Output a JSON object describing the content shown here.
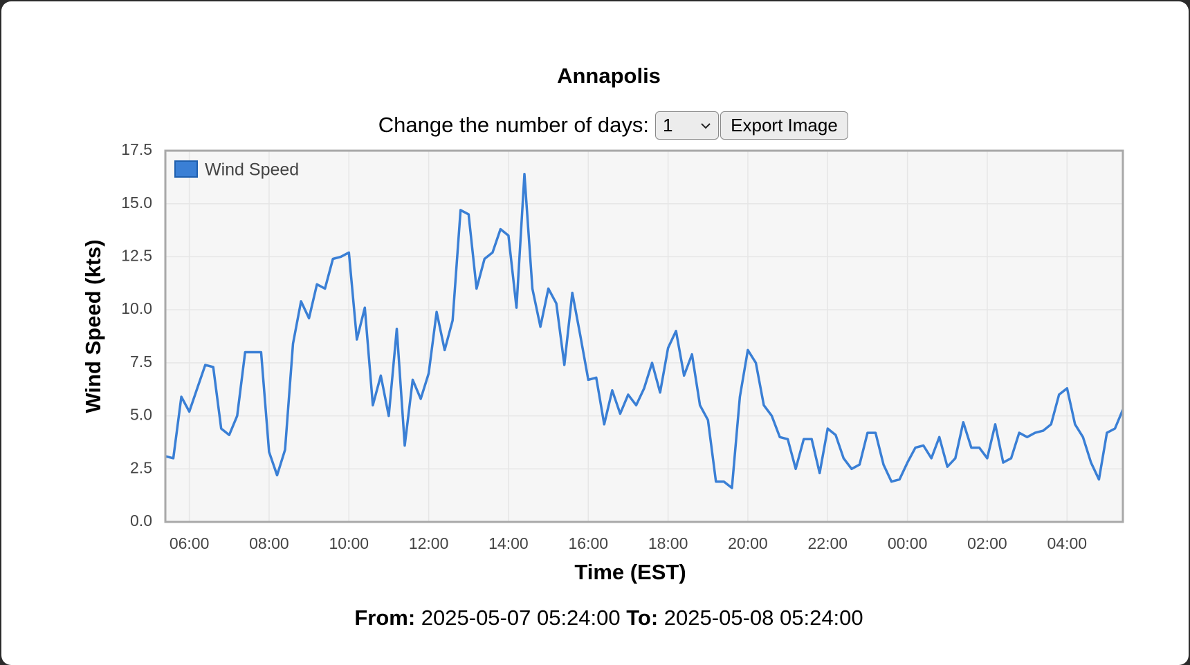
{
  "header": {
    "title": "Annapolis",
    "days_label": "Change the number of days:",
    "days_value": "1",
    "export_button": "Export Image"
  },
  "chart_data": {
    "type": "line",
    "ylabel": "Wind Speed (kts)",
    "xlabel": "Time (EST)",
    "legend": "top-left",
    "grid": true,
    "xlim": [
      "2025-05-07 05:24:00",
      "2025-05-08 05:24:00"
    ],
    "ylim": [
      0,
      17.5
    ],
    "yticks": [
      {
        "value": 0,
        "label": "0.0"
      },
      2.5,
      {
        "value": 5,
        "label": "5.0"
      },
      7.5,
      {
        "value": 10,
        "label": "10.0"
      },
      12.5,
      {
        "value": 15,
        "label": "15.0"
      },
      17.5
    ],
    "xticks": [
      {
        "value": "2025-05-07 06:00",
        "label": "06:00"
      },
      {
        "value": "2025-05-07 08:00",
        "label": "08:00"
      },
      {
        "value": "2025-05-07 10:00",
        "label": "10:00"
      },
      {
        "value": "2025-05-07 12:00",
        "label": "12:00"
      },
      {
        "value": "2025-05-07 14:00",
        "label": "14:00"
      },
      {
        "value": "2025-05-07 16:00",
        "label": "16:00"
      },
      {
        "value": "2025-05-07 18:00",
        "label": "18:00"
      },
      {
        "value": "2025-05-07 20:00",
        "label": "20:00"
      },
      {
        "value": "2025-05-07 22:00",
        "label": "22:00"
      },
      {
        "value": "2025-05-08 00:00",
        "label": "00:00"
      },
      {
        "value": "2025-05-08 02:00",
        "label": "02:00"
      },
      {
        "value": "2025-05-08 04:00",
        "label": "04:00"
      }
    ],
    "x": [
      "2025-05-07 05:24",
      "2025-05-07 05:36",
      "2025-05-07 05:48",
      "2025-05-07 06:00",
      "2025-05-07 06:12",
      "2025-05-07 06:24",
      "2025-05-07 06:36",
      "2025-05-07 06:48",
      "2025-05-07 07:00",
      "2025-05-07 07:12",
      "2025-05-07 07:24",
      "2025-05-07 07:36",
      "2025-05-07 07:48",
      "2025-05-07 08:00",
      "2025-05-07 08:12",
      "2025-05-07 08:24",
      "2025-05-07 08:36",
      "2025-05-07 08:48",
      "2025-05-07 09:00",
      "2025-05-07 09:12",
      "2025-05-07 09:24",
      "2025-05-07 09:36",
      "2025-05-07 09:48",
      "2025-05-07 10:00",
      "2025-05-07 10:12",
      "2025-05-07 10:24",
      "2025-05-07 10:36",
      "2025-05-07 10:48",
      "2025-05-07 11:00",
      "2025-05-07 11:12",
      "2025-05-07 11:24",
      "2025-05-07 11:36",
      "2025-05-07 11:48",
      "2025-05-07 12:00",
      "2025-05-07 12:12",
      "2025-05-07 12:24",
      "2025-05-07 12:36",
      "2025-05-07 12:48",
      "2025-05-07 13:00",
      "2025-05-07 13:12",
      "2025-05-07 13:24",
      "2025-05-07 13:36",
      "2025-05-07 13:48",
      "2025-05-07 14:00",
      "2025-05-07 14:12",
      "2025-05-07 14:24",
      "2025-05-07 14:36",
      "2025-05-07 14:48",
      "2025-05-07 15:00",
      "2025-05-07 15:12",
      "2025-05-07 15:24",
      "2025-05-07 15:36",
      "2025-05-07 15:48",
      "2025-05-07 16:00",
      "2025-05-07 16:12",
      "2025-05-07 16:24",
      "2025-05-07 16:36",
      "2025-05-07 16:48",
      "2025-05-07 17:00",
      "2025-05-07 17:12",
      "2025-05-07 17:24",
      "2025-05-07 17:36",
      "2025-05-07 17:48",
      "2025-05-07 18:00",
      "2025-05-07 18:12",
      "2025-05-07 18:24",
      "2025-05-07 18:36",
      "2025-05-07 18:48",
      "2025-05-07 19:00",
      "2025-05-07 19:12",
      "2025-05-07 19:24",
      "2025-05-07 19:36",
      "2025-05-07 19:48",
      "2025-05-07 20:00",
      "2025-05-07 20:12",
      "2025-05-07 20:24",
      "2025-05-07 20:36",
      "2025-05-07 20:48",
      "2025-05-07 21:00",
      "2025-05-07 21:12",
      "2025-05-07 21:24",
      "2025-05-07 21:36",
      "2025-05-07 21:48",
      "2025-05-07 22:00",
      "2025-05-07 22:12",
      "2025-05-07 22:24",
      "2025-05-07 22:36",
      "2025-05-07 22:48",
      "2025-05-07 23:00",
      "2025-05-07 23:12",
      "2025-05-07 23:24",
      "2025-05-07 23:36",
      "2025-05-07 23:48",
      "2025-05-08 00:00",
      "2025-05-08 00:12",
      "2025-05-08 00:24",
      "2025-05-08 00:36",
      "2025-05-08 00:48",
      "2025-05-08 01:00",
      "2025-05-08 01:12",
      "2025-05-08 01:24",
      "2025-05-08 01:36",
      "2025-05-08 01:48",
      "2025-05-08 02:00",
      "2025-05-08 02:12",
      "2025-05-08 02:24",
      "2025-05-08 02:36",
      "2025-05-08 02:48",
      "2025-05-08 03:00",
      "2025-05-08 03:12",
      "2025-05-08 03:24",
      "2025-05-08 03:36",
      "2025-05-08 03:48",
      "2025-05-08 04:00",
      "2025-05-08 04:12",
      "2025-05-08 04:24",
      "2025-05-08 04:36",
      "2025-05-08 04:48",
      "2025-05-08 05:00",
      "2025-05-08 05:12",
      "2025-05-08 05:24"
    ],
    "series": [
      {
        "name": "Wind Speed",
        "color": "#3a7fd5",
        "values": [
          3.1,
          3.0,
          5.9,
          5.2,
          6.3,
          7.4,
          7.3,
          4.4,
          4.1,
          5.0,
          8.0,
          8.0,
          8.0,
          3.3,
          2.2,
          3.4,
          8.4,
          10.4,
          9.6,
          11.2,
          11.0,
          12.4,
          12.5,
          12.7,
          8.6,
          10.1,
          5.5,
          6.9,
          5.0,
          9.1,
          3.6,
          6.7,
          5.8,
          7.0,
          9.9,
          8.1,
          9.5,
          14.7,
          14.5,
          11.0,
          12.4,
          12.7,
          13.8,
          13.5,
          10.1,
          16.4,
          11.0,
          9.2,
          11.0,
          10.3,
          7.4,
          10.8,
          8.8,
          6.7,
          6.8,
          4.6,
          6.2,
          5.1,
          6.0,
          5.5,
          6.3,
          7.5,
          6.1,
          8.2,
          9.0,
          6.9,
          7.9,
          5.5,
          4.8,
          1.9,
          1.9,
          1.6,
          5.9,
          8.1,
          7.5,
          5.5,
          5.0,
          4.0,
          3.9,
          2.5,
          3.9,
          3.9,
          2.3,
          4.4,
          4.1,
          3.0,
          2.5,
          2.7,
          4.2,
          4.2,
          2.7,
          1.9,
          2.0,
          2.8,
          3.5,
          3.6,
          3.0,
          4.0,
          2.6,
          3.0,
          4.7,
          3.5,
          3.5,
          3.0,
          4.6,
          2.8,
          3.0,
          4.2,
          4.0,
          4.2,
          4.3,
          4.6,
          6.0,
          6.3,
          4.6,
          4.0,
          2.8,
          2.0,
          4.2,
          4.4,
          5.3
        ]
      }
    ]
  },
  "footer": {
    "from_label": "From:",
    "to_label": "To:"
  }
}
